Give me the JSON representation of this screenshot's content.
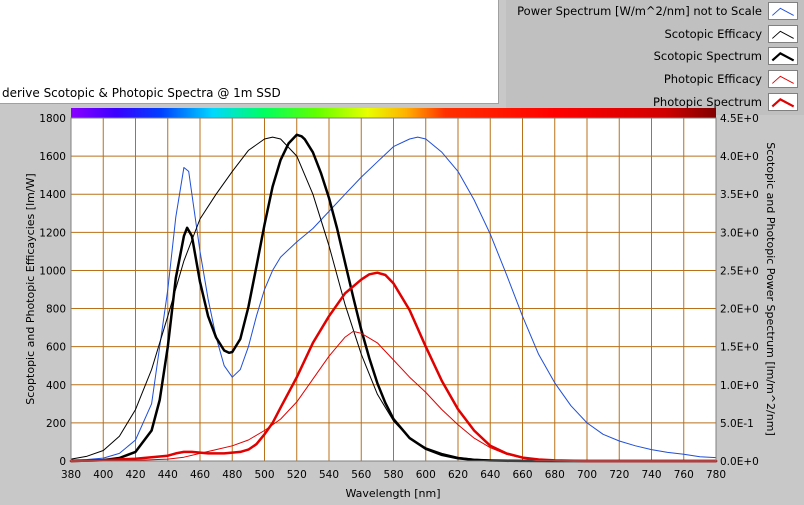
{
  "panel": {
    "title": "derive Scotopic & Photopic Spectra @ 1m SSD"
  },
  "legend": {
    "items": [
      {
        "label": "Power Spectrum [W/m^2/nm] not to Scale",
        "color": "#1f4fd8",
        "weight": "thin"
      },
      {
        "label": "Scotopic Efficacy",
        "color": "#000000",
        "weight": "thin"
      },
      {
        "label": "Scotopic Spectrum",
        "color": "#000000",
        "weight": "thick"
      },
      {
        "label": "Photopic Efficacy",
        "color": "#e00000",
        "weight": "thin"
      },
      {
        "label": "Photopic Spectrum",
        "color": "#e00000",
        "weight": "thick"
      }
    ]
  },
  "colors": {
    "plot_background": "#ffffff",
    "grid": "#b8711a",
    "power": "#1f4fd8",
    "scotopic": "#000000",
    "photopic": "#e00000"
  },
  "chart_data": {
    "type": "line",
    "title": "",
    "xlabel": "Wavelength [nm]",
    "ylabel": "Scoptopic and Photopic Efficaycies [lm/W]",
    "y2label": "Scotopic and Photopic Power Spectrum [lm/m^2/nm]",
    "xlim": [
      380,
      780
    ],
    "ylim": [
      0,
      1800
    ],
    "y2lim": [
      0,
      4.5
    ],
    "grid": true,
    "legend_position": "top-right",
    "spectrum_bar": true,
    "x_ticks": [
      "380",
      "400",
      "420",
      "440",
      "460",
      "480",
      "500",
      "520",
      "540",
      "560",
      "580",
      "600",
      "620",
      "640",
      "660",
      "680",
      "700",
      "720",
      "740",
      "760",
      "780"
    ],
    "y_ticks": [
      "0",
      "200",
      "400",
      "600",
      "800",
      "1000",
      "1200",
      "1400",
      "1600",
      "1800"
    ],
    "y2_ticks": [
      "0.0E+0",
      "5.0E-1",
      "1.0E+0",
      "1.5E+0",
      "2.0E+0",
      "2.5E+0",
      "3.0E+0",
      "3.5E+0",
      "4.0E+0",
      "4.5E+0"
    ],
    "series": [
      {
        "name": "Power Spectrum [W/m^2/nm] not to Scale",
        "axis": "left",
        "x": [
          380,
          390,
          400,
          410,
          420,
          430,
          440,
          445,
          450,
          453,
          455,
          460,
          465,
          470,
          475,
          480,
          485,
          490,
          495,
          500,
          505,
          510,
          520,
          530,
          540,
          550,
          560,
          570,
          580,
          590,
          595,
          600,
          610,
          620,
          630,
          640,
          650,
          660,
          670,
          680,
          690,
          700,
          710,
          720,
          730,
          740,
          750,
          760,
          770,
          780
        ],
        "values": [
          5,
          8,
          15,
          40,
          110,
          300,
          900,
          1280,
          1540,
          1520,
          1400,
          1100,
          850,
          650,
          500,
          440,
          480,
          600,
          760,
          900,
          1000,
          1070,
          1150,
          1220,
          1310,
          1400,
          1490,
          1570,
          1650,
          1690,
          1700,
          1690,
          1620,
          1520,
          1370,
          1190,
          980,
          760,
          560,
          410,
          290,
          200,
          140,
          105,
          80,
          60,
          45,
          35,
          22,
          18
        ]
      },
      {
        "name": "Scotopic Efficacy",
        "axis": "left",
        "x": [
          380,
          390,
          400,
          410,
          420,
          430,
          440,
          450,
          460,
          470,
          480,
          490,
          500,
          505,
          510,
          520,
          530,
          540,
          550,
          560,
          570,
          580,
          590,
          600,
          610,
          620,
          630,
          640,
          650,
          660,
          680,
          700,
          720,
          740,
          780
        ],
        "values": [
          10,
          25,
          55,
          130,
          270,
          480,
          760,
          1050,
          1270,
          1400,
          1520,
          1630,
          1690,
          1700,
          1690,
          1600,
          1400,
          1130,
          820,
          560,
          350,
          210,
          120,
          70,
          40,
          20,
          10,
          5,
          3,
          2,
          1,
          0,
          0,
          0,
          0
        ]
      },
      {
        "name": "Scotopic Spectrum",
        "axis": "right",
        "x": [
          380,
          390,
          400,
          410,
          420,
          430,
          435,
          440,
          445,
          450,
          452,
          455,
          460,
          465,
          470,
          475,
          478,
          480,
          485,
          490,
          495,
          500,
          505,
          510,
          515,
          520,
          523,
          525,
          530,
          535,
          540,
          545,
          550,
          555,
          560,
          565,
          570,
          575,
          580,
          590,
          600,
          610,
          620,
          630,
          640,
          650,
          660,
          680,
          700,
          780
        ],
        "values": [
          0.0,
          0.005,
          0.012,
          0.04,
          0.12,
          0.4,
          0.8,
          1.5,
          2.4,
          2.95,
          3.06,
          2.95,
          2.35,
          1.9,
          1.62,
          1.45,
          1.42,
          1.43,
          1.6,
          2.02,
          2.55,
          3.1,
          3.6,
          3.95,
          4.17,
          4.28,
          4.26,
          4.22,
          4.05,
          3.78,
          3.45,
          3.05,
          2.6,
          2.15,
          1.72,
          1.35,
          1.02,
          0.76,
          0.55,
          0.3,
          0.16,
          0.08,
          0.035,
          0.014,
          0.006,
          0.002,
          0.001,
          0.0,
          0.0,
          0.0
        ]
      },
      {
        "name": "Photopic Efficacy",
        "axis": "left",
        "x": [
          380,
          400,
          420,
          440,
          450,
          460,
          470,
          480,
          490,
          500,
          510,
          520,
          530,
          540,
          550,
          555,
          560,
          570,
          580,
          590,
          600,
          610,
          620,
          630,
          640,
          650,
          660,
          670,
          680,
          700,
          720,
          780
        ],
        "values": [
          0,
          1,
          3,
          10,
          20,
          40,
          60,
          80,
          110,
          160,
          220,
          310,
          430,
          550,
          650,
          680,
          670,
          620,
          530,
          440,
          360,
          270,
          190,
          120,
          70,
          35,
          16,
          7,
          3,
          1,
          0,
          0
        ]
      },
      {
        "name": "Photopic Spectrum",
        "axis": "right",
        "x": [
          380,
          400,
          420,
          440,
          445,
          450,
          455,
          460,
          465,
          470,
          475,
          480,
          485,
          490,
          495,
          500,
          505,
          510,
          520,
          530,
          540,
          550,
          560,
          565,
          570,
          575,
          580,
          590,
          600,
          610,
          620,
          630,
          640,
          650,
          660,
          670,
          680,
          700,
          780
        ],
        "values": [
          0.0,
          0.01,
          0.03,
          0.07,
          0.1,
          0.12,
          0.12,
          0.11,
          0.1,
          0.1,
          0.1,
          0.11,
          0.12,
          0.15,
          0.22,
          0.35,
          0.5,
          0.7,
          1.1,
          1.55,
          1.9,
          2.2,
          2.38,
          2.45,
          2.47,
          2.44,
          2.33,
          1.98,
          1.5,
          1.05,
          0.68,
          0.4,
          0.2,
          0.1,
          0.045,
          0.02,
          0.008,
          0.0,
          0.0
        ]
      }
    ]
  }
}
